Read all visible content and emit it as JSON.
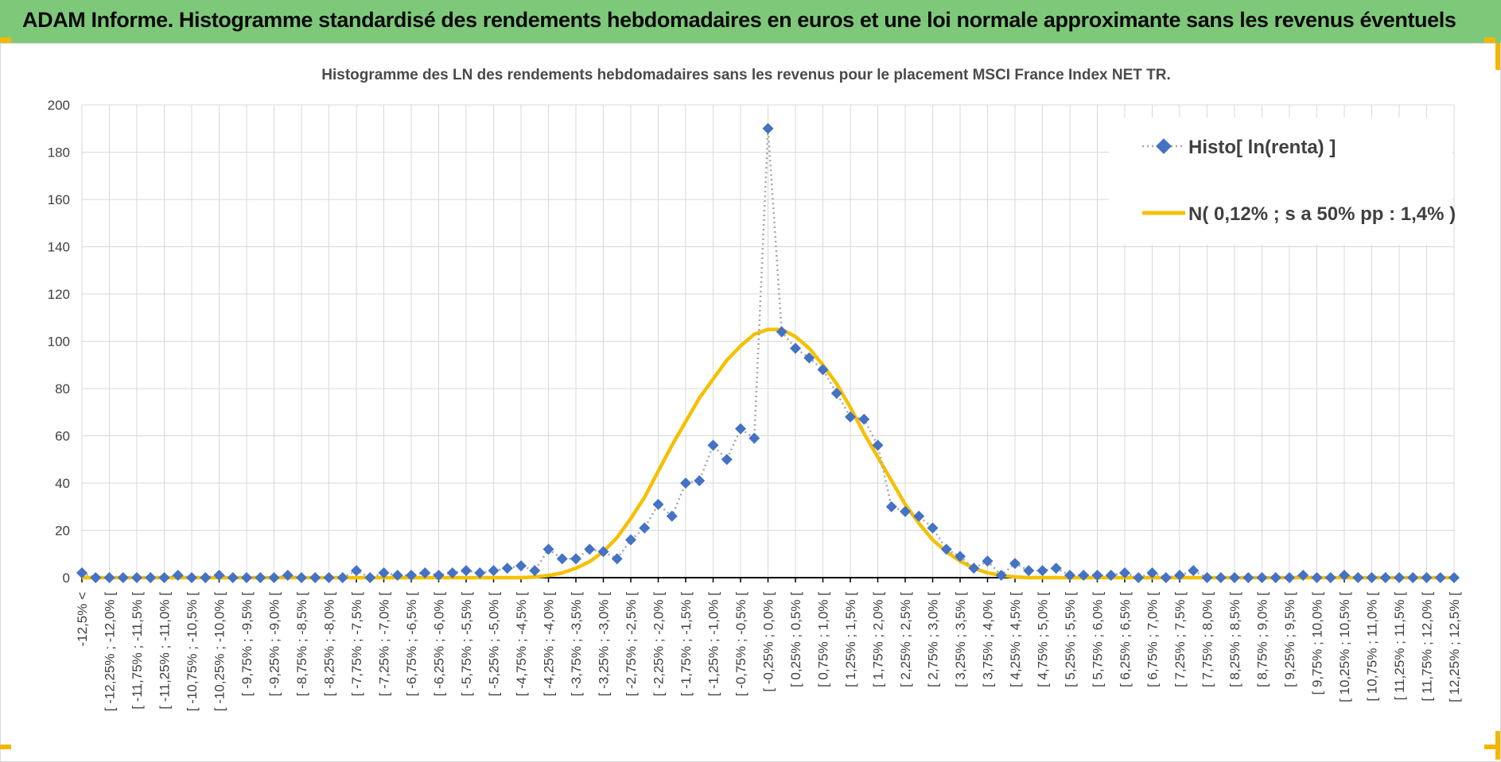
{
  "header": {
    "title": "ADAM Informe. Histogramme standardisé des rendements hebdomadaires en euros et une loi normale approximante sans les revenus éventuels"
  },
  "colors": {
    "banner": "#7ec87a",
    "histogram": "#4472c4",
    "normal": "#f5c000",
    "accent": "#f2b705"
  },
  "chart_data": {
    "type": "line",
    "title": "Histogramme  des LN des rendements hebdomadaires sans les revenus pour le placement MSCI France Index NET TR.",
    "xlabel": "",
    "ylabel": "",
    "ylim": [
      0,
      200
    ],
    "yticks": [
      0,
      20,
      40,
      60,
      80,
      100,
      120,
      140,
      160,
      180,
      200
    ],
    "grid": true,
    "legend_position": "top-right",
    "categories": [
      "-12,5% <",
      "[ -12,25% ; -12,0% [",
      "[ -11,75% ; -11,5% [",
      "[ -11,25% ; -11,0% [",
      "[ -10,75% ; -10,5% [",
      "[ -10,25% ; -10,0% [",
      "[ -9,75% ; -9,5% [",
      "[ -9,25% ; -9,0% [",
      "[ -8,75% ; -8,5% [",
      "[ -8,25% ; -8,0% [",
      "[ -7,75% ; -7,5% [",
      "[ -7,25% ; -7,0% [",
      "[ -6,75% ; -6,5% [",
      "[ -6,25% ; -6,0% [",
      "[ -5,75% ; -5,5% [",
      "[ -5,25% ; -5,0% [",
      "[ -4,75% ; -4,5% [",
      "[ -4,25% ; -4,0% [",
      "[ -3,75% ; -3,5% [",
      "[ -3,25% ; -3,0% [",
      "[ -2,75% ; -2,5% [",
      "[ -2,25% ; -2,0% [",
      "[ -1,75% ; -1,5% [",
      "[ -1,25% ; -1,0% [",
      "[ -0,75% ; -0,5% [",
      "[ -0,25% ; 0,0% [",
      "[ 0,25% ; 0,5% [",
      "[ 0,75% ; 1,0% [",
      "[ 1,25% ; 1,5% [",
      "[ 1,75% ; 2,0% [",
      "[ 2,25% ; 2,5% [",
      "[ 2,75% ; 3,0% [",
      "[ 3,25% ; 3,5% [",
      "[ 3,75% ; 4,0% [",
      "[ 4,25% ; 4,5% [",
      "[ 4,75% ; 5,0% [",
      "[ 5,25% ; 5,5% [",
      "[ 5,75% ; 6,0% [",
      "[ 6,25% ; 6,5% [",
      "[ 6,75% ; 7,0% [",
      "[ 7,25% ; 7,5% [",
      "[ 7,75% ; 8,0% [",
      "[ 8,25% ; 8,5% [",
      "[ 8,75% ; 9,0% [",
      "[ 9,25% ; 9,5% [",
      "[ 9,75% ; 10,0% [",
      "[ 10,25% ; 10,5% [",
      "[ 10,75% ; 11,0% [",
      "[ 11,25% ; 11,5% [",
      "[ 11,75% ; 12,0% [",
      "[ 12,25% ; 12,5% ["
    ],
    "x": [
      -12.5,
      -12.25,
      -12.0,
      -11.75,
      -11.5,
      -11.25,
      -11.0,
      -10.75,
      -10.5,
      -10.25,
      -10.0,
      -9.75,
      -9.5,
      -9.25,
      -9.0,
      -8.75,
      -8.5,
      -8.25,
      -8.0,
      -7.75,
      -7.5,
      -7.25,
      -7.0,
      -6.75,
      -6.5,
      -6.25,
      -6.0,
      -5.75,
      -5.5,
      -5.25,
      -5.0,
      -4.75,
      -4.5,
      -4.25,
      -4.0,
      -3.75,
      -3.5,
      -3.25,
      -3.0,
      -2.75,
      -2.5,
      -2.25,
      -2.0,
      -1.75,
      -1.5,
      -1.25,
      -1.0,
      -0.75,
      -0.5,
      -0.25,
      0.0,
      0.25,
      0.5,
      0.75,
      1.0,
      1.25,
      1.5,
      1.75,
      2.0,
      2.25,
      2.5,
      2.75,
      3.0,
      3.25,
      3.5,
      3.75,
      4.0,
      4.25,
      4.5,
      4.75,
      5.0,
      5.25,
      5.5,
      5.75,
      6.0,
      6.25,
      6.5,
      6.75,
      7.0,
      7.25,
      7.5,
      7.75,
      8.0,
      8.25,
      8.5,
      8.75,
      9.0,
      9.25,
      9.5,
      9.75,
      10.0,
      10.25,
      10.5,
      10.75,
      11.0,
      11.25,
      11.5,
      11.75,
      12.0,
      12.25,
      12.5
    ],
    "series": [
      {
        "name": "Histo[ ln(renta) ]",
        "style": "dotted line with diamond markers",
        "values": [
          2,
          0,
          0,
          0,
          0,
          0,
          0,
          1,
          0,
          0,
          1,
          0,
          0,
          0,
          0,
          1,
          0,
          0,
          0,
          0,
          3,
          0,
          2,
          1,
          1,
          2,
          1,
          2,
          3,
          2,
          3,
          4,
          5,
          3,
          12,
          8,
          8,
          12,
          11,
          8,
          16,
          21,
          31,
          26,
          40,
          41,
          56,
          50,
          63,
          59,
          190,
          104,
          97,
          93,
          88,
          78,
          68,
          67,
          56,
          30,
          28,
          26,
          21,
          12,
          9,
          4,
          7,
          1,
          6,
          3,
          3,
          4,
          1,
          1,
          1,
          1,
          2,
          0,
          2,
          0,
          1,
          3,
          0,
          0,
          0,
          0,
          0,
          0,
          0,
          1,
          0,
          0,
          1,
          0,
          0,
          0,
          0,
          0,
          0,
          0,
          0
        ]
      },
      {
        "name": "N( 0,12% ; s a 50% pp : 1,4% )",
        "style": "solid line",
        "values": [
          0,
          0,
          0,
          0,
          0,
          0,
          0,
          0,
          0,
          0,
          0,
          0,
          0,
          0,
          0,
          0,
          0,
          0,
          0,
          0,
          0,
          0,
          0,
          0,
          0,
          0,
          0,
          0,
          0,
          0,
          0,
          0,
          0,
          0.3,
          0.9,
          2,
          4,
          6.8,
          11,
          17,
          25,
          34,
          45,
          56,
          66,
          76,
          84,
          92,
          98,
          103,
          105,
          105,
          102,
          97,
          90,
          82,
          72,
          61,
          51,
          41,
          31,
          23,
          16,
          11,
          7,
          4,
          2,
          1,
          0.3,
          0,
          0,
          0,
          0,
          0,
          0,
          0,
          0,
          0,
          0,
          0,
          0,
          0,
          0,
          0,
          0,
          0,
          0,
          0,
          0,
          0,
          0,
          0,
          0,
          0,
          0,
          0,
          0,
          0,
          0,
          0,
          0
        ]
      }
    ]
  }
}
